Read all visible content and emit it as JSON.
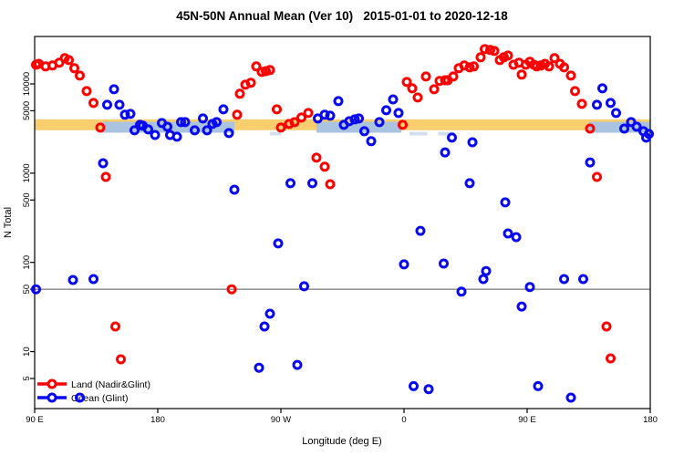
{
  "chart_data": {
    "type": "scatter",
    "title": "45N-50N Annual Mean (Ver 10)   2015-01-01 to 2020-12-18",
    "xlabel": "Longitude (deg E)",
    "ylabel": "N Total",
    "background": "#FFFFFF",
    "x_axis": {
      "range": [
        90,
        540
      ],
      "note": "longitude wraps around the globe: 90E to 180 to 90W to 0 to 90E to 180",
      "ticks": [
        {
          "value": 90,
          "label": "90 E"
        },
        {
          "value": 180,
          "label": "180"
        },
        {
          "value": 270,
          "label": "90 W"
        },
        {
          "value": 360,
          "label": "0"
        },
        {
          "value": 450,
          "label": "90 E"
        },
        {
          "value": 540,
          "label": "180"
        }
      ]
    },
    "y_axis": {
      "scale": "log",
      "range": [
        2.3,
        34000
      ],
      "ticks": [
        {
          "value": 10000,
          "label": "10000"
        },
        {
          "value": 5000,
          "label": "5000"
        },
        {
          "value": 1000,
          "label": "1000"
        },
        {
          "value": 500,
          "label": "500"
        },
        {
          "value": 100,
          "label": "100"
        },
        {
          "value": 50,
          "label": "50"
        },
        {
          "value": 10,
          "label": "10"
        },
        {
          "value": 5,
          "label": "5"
        }
      ]
    },
    "reference_line": {
      "value": 50,
      "color": "#858585"
    },
    "bands": {
      "land_mean": {
        "x_from": 90,
        "x_to": 540,
        "value_from": 3030,
        "value_to": 4010,
        "color": "#F8CE6E"
      },
      "ocean_mean_segments": [
        {
          "x_from": 139,
          "x_to": 236,
          "value_from": 2840,
          "value_to": 3760
        },
        {
          "x_from": 296,
          "x_to": 358,
          "value_from": 2840,
          "value_to": 3760
        },
        {
          "x_from": 495,
          "x_to": 540,
          "value_from": 2840,
          "value_to": 3760
        }
      ],
      "ocean_band_color": "#A9C3E1",
      "faint_marks": [
        {
          "x_from": 262,
          "x_to": 270,
          "value_from": 2650,
          "value_to": 2900
        },
        {
          "x_from": 364,
          "x_to": 377,
          "value_from": 2650,
          "value_to": 2900
        },
        {
          "x_from": 385,
          "x_to": 397,
          "value_from": 2650,
          "value_to": 2900
        }
      ]
    },
    "series": [
      {
        "name": "Land (Nadir&Glint)",
        "color": "#FF0000",
        "marker": "open-circle",
        "points": [
          [
            91,
            16400
          ],
          [
            93,
            16800
          ],
          [
            98,
            15700
          ],
          [
            103,
            16100
          ],
          [
            108,
            17300
          ],
          [
            112,
            19400
          ],
          [
            115,
            18500
          ],
          [
            119,
            15000
          ],
          [
            123,
            12400
          ],
          [
            128,
            8300
          ],
          [
            133,
            6110
          ],
          [
            138,
            3240
          ],
          [
            142,
            908
          ],
          [
            149,
            19.1
          ],
          [
            153,
            8.2
          ],
          [
            234,
            50
          ],
          [
            238,
            4510
          ],
          [
            240,
            7750
          ],
          [
            244,
            9800
          ],
          [
            248,
            10300
          ],
          [
            252,
            15700
          ],
          [
            256,
            13600
          ],
          [
            259,
            13900
          ],
          [
            262,
            14300
          ],
          [
            267,
            5190
          ],
          [
            270,
            3240
          ],
          [
            276,
            3560
          ],
          [
            280,
            3730
          ],
          [
            285,
            4200
          ],
          [
            290,
            4720
          ],
          [
            296,
            1490
          ],
          [
            302,
            1180
          ],
          [
            306,
            752
          ],
          [
            359,
            3480
          ],
          [
            362,
            10500
          ],
          [
            366,
            8910
          ],
          [
            370,
            7050
          ],
          [
            376,
            12100
          ],
          [
            382,
            8710
          ],
          [
            386,
            10800
          ],
          [
            390,
            11000
          ],
          [
            392,
            11000
          ],
          [
            396,
            12100
          ],
          [
            400,
            15000
          ],
          [
            404,
            16100
          ],
          [
            408,
            15300
          ],
          [
            411,
            15700
          ],
          [
            416,
            19900
          ],
          [
            419,
            24500
          ],
          [
            423,
            24000
          ],
          [
            426,
            23400
          ],
          [
            430,
            18500
          ],
          [
            433,
            19900
          ],
          [
            436,
            20800
          ],
          [
            440,
            16400
          ],
          [
            444,
            17300
          ],
          [
            446,
            12700
          ],
          [
            449,
            16400
          ],
          [
            452,
            17700
          ],
          [
            455,
            16400
          ],
          [
            457,
            15700
          ],
          [
            460,
            16100
          ],
          [
            463,
            16800
          ],
          [
            466,
            15700
          ],
          [
            470,
            19400
          ],
          [
            474,
            16800
          ],
          [
            477,
            15300
          ],
          [
            482,
            12400
          ],
          [
            485,
            8300
          ],
          [
            490,
            5970
          ],
          [
            496,
            3160
          ],
          [
            501,
            908
          ],
          [
            508,
            19.1
          ],
          [
            511,
            8.4
          ]
        ]
      },
      {
        "name": "Ocean (Glint)",
        "color": "#0909F0",
        "marker": "open-circle",
        "points": [
          [
            91,
            50
          ],
          [
            118,
            63.5
          ],
          [
            133,
            65
          ],
          [
            123,
            3.05
          ],
          [
            140,
            1290
          ],
          [
            143,
            5830
          ],
          [
            148,
            8710
          ],
          [
            152,
            5830
          ],
          [
            156,
            4510
          ],
          [
            160,
            4610
          ],
          [
            163,
            3020
          ],
          [
            167,
            3480
          ],
          [
            169,
            3400
          ],
          [
            173,
            3090
          ],
          [
            178,
            2680
          ],
          [
            183,
            3640
          ],
          [
            187,
            3310
          ],
          [
            189,
            2680
          ],
          [
            194,
            2560
          ],
          [
            197,
            3730
          ],
          [
            200,
            3730
          ],
          [
            207,
            3020
          ],
          [
            213,
            4100
          ],
          [
            216,
            3020
          ],
          [
            220,
            3560
          ],
          [
            223,
            3730
          ],
          [
            228,
            5190
          ],
          [
            232,
            2810
          ],
          [
            236,
            653
          ],
          [
            254,
            6.6
          ],
          [
            258,
            19.1
          ],
          [
            262,
            26.6
          ],
          [
            268,
            163
          ],
          [
            277,
            771
          ],
          [
            282,
            7.1
          ],
          [
            287,
            54
          ],
          [
            293,
            771
          ],
          [
            297,
            4100
          ],
          [
            302,
            4510
          ],
          [
            306,
            4400
          ],
          [
            312,
            6410
          ],
          [
            316,
            3480
          ],
          [
            320,
            3820
          ],
          [
            324,
            4000
          ],
          [
            327,
            4100
          ],
          [
            331,
            2950
          ],
          [
            336,
            2280
          ],
          [
            342,
            3730
          ],
          [
            347,
            5070
          ],
          [
            352,
            6710
          ],
          [
            356,
            4720
          ],
          [
            360,
            95
          ],
          [
            367,
            4.1
          ],
          [
            372,
            226
          ],
          [
            378,
            3.8
          ],
          [
            389,
            97
          ],
          [
            390,
            1710
          ],
          [
            395,
            2500
          ],
          [
            402,
            47
          ],
          [
            408,
            771
          ],
          [
            410,
            2220
          ],
          [
            418,
            65
          ],
          [
            420,
            80
          ],
          [
            434,
            470
          ],
          [
            436,
            211
          ],
          [
            442,
            192
          ],
          [
            446,
            32
          ],
          [
            452,
            53
          ],
          [
            458,
            4.1
          ],
          [
            477,
            65
          ],
          [
            482,
            3.05
          ],
          [
            491,
            65
          ],
          [
            496,
            1320
          ],
          [
            501,
            5830
          ],
          [
            505,
            8910
          ],
          [
            511,
            6110
          ],
          [
            515,
            4720
          ],
          [
            521,
            3160
          ],
          [
            526,
            3730
          ],
          [
            530,
            3320
          ],
          [
            535,
            2950
          ],
          [
            537,
            2500
          ],
          [
            539,
            2750
          ]
        ]
      }
    ],
    "legend": {
      "position": "bottom-left",
      "entries": [
        "Land (Nadir&Glint)",
        "Ocean (Glint)"
      ]
    }
  }
}
